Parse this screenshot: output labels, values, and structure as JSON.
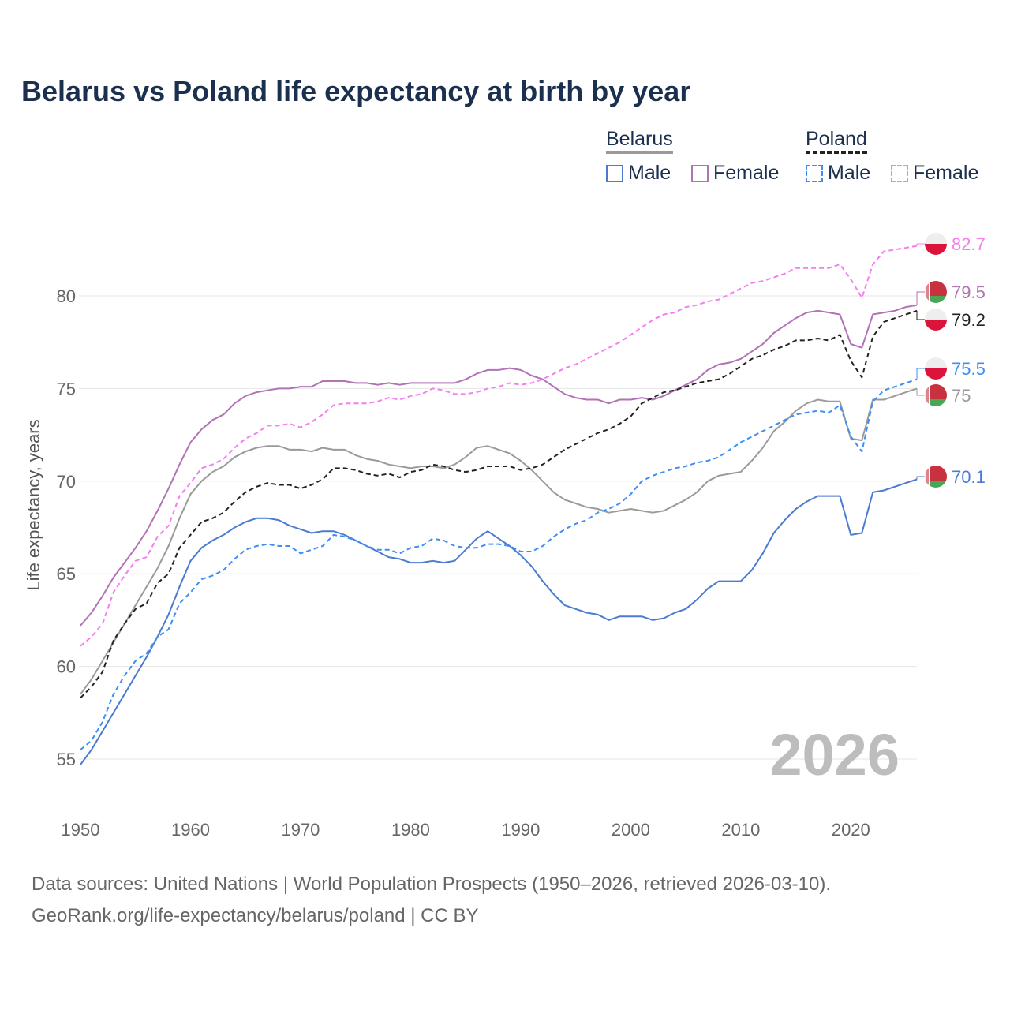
{
  "chart_data": {
    "type": "line",
    "title": "Belarus vs Poland life expectancy at birth by year",
    "ylabel": "Life expectancy, years",
    "xlabel": "",
    "xlim": [
      1950,
      2026
    ],
    "ylim": [
      53,
      84
    ],
    "x_ticks": [
      1950,
      1960,
      1970,
      1980,
      1990,
      2000,
      2010,
      2020
    ],
    "y_ticks": [
      55,
      60,
      65,
      70,
      75,
      80
    ],
    "grid": true,
    "watermark_year": "2026",
    "legend": {
      "placement": "top-right",
      "groups": [
        {
          "country": "Belarus",
          "items": [
            "Male",
            "Female"
          ]
        },
        {
          "country": "Poland",
          "items": [
            "Male",
            "Female"
          ]
        }
      ]
    },
    "x_start": 1950,
    "series": [
      {
        "id": "by-female",
        "country": "Belarus",
        "name": "Female",
        "color": "#b173b5",
        "dash": false,
        "end_label": "79.5",
        "flag": "belarus",
        "values": [
          62.2,
          62.9,
          63.8,
          64.8,
          65.6,
          66.4,
          67.3,
          68.4,
          69.6,
          70.9,
          72.1,
          72.8,
          73.3,
          73.6,
          74.2,
          74.6,
          74.8,
          74.9,
          75.0,
          75.0,
          75.1,
          75.1,
          75.4,
          75.4,
          75.4,
          75.3,
          75.3,
          75.2,
          75.3,
          75.2,
          75.3,
          75.3,
          75.3,
          75.3,
          75.3,
          75.5,
          75.8,
          76.0,
          76.0,
          76.1,
          76.0,
          75.7,
          75.5,
          75.1,
          74.7,
          74.5,
          74.4,
          74.4,
          74.2,
          74.4,
          74.4,
          74.5,
          74.4,
          74.6,
          74.9,
          75.2,
          75.5,
          76.0,
          76.3,
          76.4,
          76.6,
          77.0,
          77.4,
          78.0,
          78.4,
          78.8,
          79.1,
          79.2,
          79.1,
          79.0,
          77.4,
          77.2,
          79.0,
          79.1,
          79.2,
          79.4,
          79.5
        ]
      },
      {
        "id": "by-total",
        "country": "Belarus",
        "name": "Total",
        "color": "#9a9a9a",
        "dash": false,
        "end_label": "75",
        "flag": "belarus",
        "values": [
          58.5,
          59.3,
          60.3,
          61.3,
          62.3,
          63.3,
          64.3,
          65.3,
          66.5,
          68.0,
          69.3,
          70.0,
          70.5,
          70.8,
          71.3,
          71.6,
          71.8,
          71.9,
          71.9,
          71.7,
          71.7,
          71.6,
          71.8,
          71.7,
          71.7,
          71.4,
          71.2,
          71.1,
          70.9,
          70.8,
          70.7,
          70.8,
          70.8,
          70.7,
          70.9,
          71.3,
          71.8,
          71.9,
          71.7,
          71.5,
          71.1,
          70.6,
          70.0,
          69.4,
          69.0,
          68.8,
          68.6,
          68.5,
          68.3,
          68.4,
          68.5,
          68.4,
          68.3,
          68.4,
          68.7,
          69.0,
          69.4,
          70.0,
          70.3,
          70.4,
          70.5,
          71.1,
          71.8,
          72.7,
          73.2,
          73.8,
          74.2,
          74.4,
          74.3,
          74.3,
          72.3,
          72.2,
          74.4,
          74.4,
          74.6,
          74.8,
          75.0
        ]
      },
      {
        "id": "by-male",
        "country": "Belarus",
        "name": "Male",
        "color": "#4a7bd0",
        "dash": false,
        "end_label": "70.1",
        "flag": "belarus",
        "values": [
          54.7,
          55.5,
          56.5,
          57.5,
          58.5,
          59.5,
          60.5,
          61.6,
          62.8,
          64.3,
          65.7,
          66.4,
          66.8,
          67.1,
          67.5,
          67.8,
          68.0,
          68.0,
          67.9,
          67.6,
          67.4,
          67.2,
          67.3,
          67.3,
          67.1,
          66.8,
          66.5,
          66.2,
          65.9,
          65.8,
          65.6,
          65.6,
          65.7,
          65.6,
          65.7,
          66.3,
          66.9,
          67.3,
          66.9,
          66.5,
          66.0,
          65.4,
          64.6,
          63.9,
          63.3,
          63.1,
          62.9,
          62.8,
          62.5,
          62.7,
          62.7,
          62.7,
          62.5,
          62.6,
          62.9,
          63.1,
          63.6,
          64.2,
          64.6,
          64.6,
          64.6,
          65.2,
          66.1,
          67.2,
          67.9,
          68.5,
          68.9,
          69.2,
          69.2,
          69.2,
          67.1,
          67.2,
          69.4,
          69.5,
          69.7,
          69.9,
          70.1
        ]
      },
      {
        "id": "pl-female",
        "country": "Poland",
        "name": "Female",
        "color": "#f47ef0",
        "dash": true,
        "end_label": "82.7",
        "flag": "poland",
        "values": [
          61.1,
          61.6,
          62.3,
          64.0,
          64.9,
          65.7,
          65.9,
          67.0,
          67.6,
          69.2,
          69.9,
          70.7,
          70.9,
          71.2,
          71.8,
          72.3,
          72.6,
          73.0,
          73.0,
          73.1,
          72.9,
          73.2,
          73.6,
          74.1,
          74.2,
          74.2,
          74.2,
          74.3,
          74.5,
          74.4,
          74.6,
          74.7,
          75.0,
          74.9,
          74.7,
          74.7,
          74.8,
          75.0,
          75.1,
          75.3,
          75.2,
          75.3,
          75.5,
          75.8,
          76.1,
          76.3,
          76.6,
          76.9,
          77.2,
          77.5,
          77.9,
          78.3,
          78.7,
          79.0,
          79.1,
          79.4,
          79.5,
          79.7,
          79.8,
          80.1,
          80.4,
          80.7,
          80.8,
          81.0,
          81.2,
          81.5,
          81.5,
          81.5,
          81.5,
          81.7,
          80.9,
          79.9,
          81.7,
          82.4,
          82.5,
          82.6,
          82.7
        ]
      },
      {
        "id": "pl-total",
        "country": "Poland",
        "name": "Total",
        "color": "#222222",
        "dash": true,
        "end_label": "79.2",
        "flag": "poland",
        "values": [
          58.3,
          58.9,
          59.7,
          61.4,
          62.3,
          63.1,
          63.4,
          64.5,
          65.0,
          66.4,
          67.1,
          67.8,
          68.0,
          68.3,
          68.9,
          69.4,
          69.7,
          69.9,
          69.8,
          69.8,
          69.6,
          69.8,
          70.1,
          70.7,
          70.7,
          70.6,
          70.4,
          70.3,
          70.4,
          70.2,
          70.5,
          70.6,
          70.9,
          70.8,
          70.6,
          70.5,
          70.6,
          70.8,
          70.8,
          70.8,
          70.6,
          70.7,
          70.9,
          71.3,
          71.7,
          72.0,
          72.3,
          72.6,
          72.8,
          73.1,
          73.5,
          74.2,
          74.5,
          74.8,
          74.9,
          75.1,
          75.3,
          75.4,
          75.5,
          75.8,
          76.2,
          76.6,
          76.8,
          77.1,
          77.3,
          77.6,
          77.6,
          77.7,
          77.6,
          77.9,
          76.5,
          75.6,
          77.8,
          78.6,
          78.8,
          79.0,
          79.2
        ]
      },
      {
        "id": "pl-male",
        "country": "Poland",
        "name": "Male",
        "color": "#3d8ef5",
        "dash": true,
        "end_label": "75.5",
        "flag": "poland",
        "values": [
          55.5,
          56.0,
          57.0,
          58.5,
          59.5,
          60.3,
          60.7,
          61.6,
          62.0,
          63.4,
          64.0,
          64.7,
          64.9,
          65.2,
          65.8,
          66.3,
          66.5,
          66.6,
          66.5,
          66.5,
          66.1,
          66.3,
          66.5,
          67.1,
          67.0,
          66.8,
          66.5,
          66.3,
          66.3,
          66.1,
          66.4,
          66.5,
          66.9,
          66.8,
          66.5,
          66.4,
          66.4,
          66.6,
          66.6,
          66.5,
          66.2,
          66.2,
          66.5,
          67.0,
          67.4,
          67.7,
          67.9,
          68.3,
          68.5,
          68.8,
          69.3,
          70.0,
          70.3,
          70.5,
          70.7,
          70.8,
          71.0,
          71.1,
          71.3,
          71.7,
          72.1,
          72.4,
          72.7,
          73.0,
          73.3,
          73.6,
          73.7,
          73.8,
          73.7,
          74.1,
          72.4,
          71.6,
          74.3,
          74.9,
          75.1,
          75.3,
          75.5
        ]
      }
    ]
  },
  "legend": {
    "belarus": "Belarus",
    "poland": "Poland",
    "male": "Male",
    "female": "Female",
    "colors": {
      "by_male": "#4a7bd0",
      "by_female": "#b173b5",
      "pl_male": "#3d8ef5",
      "pl_female": "#f47ef0",
      "by_head": "#9a9a9a",
      "pl_head": "#222222"
    }
  },
  "footer": {
    "line1": "Data sources: United Nations | World Population Prospects (1950–2026, retrieved 2026-03-10).",
    "line2": "GeoRank.org/life-expectancy/belarus/poland | CC BY"
  }
}
